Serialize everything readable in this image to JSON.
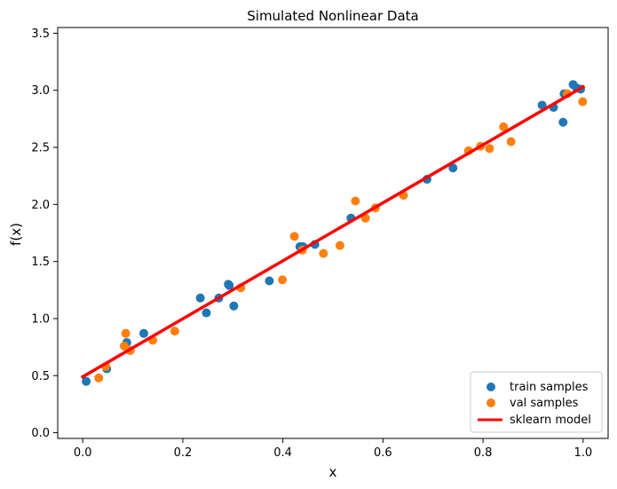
{
  "chart_data": {
    "type": "scatter",
    "title": "Simulated Nonlinear Data",
    "xlabel": "x",
    "ylabel": "f(x)",
    "xlim": [
      -0.05,
      1.05
    ],
    "ylim": [
      -0.05,
      3.55
    ],
    "xticks": [
      "0.0",
      "0.2",
      "0.4",
      "0.6",
      "0.8",
      "1.0"
    ],
    "xtick_values": [
      0.0,
      0.2,
      0.4,
      0.6,
      0.8,
      1.0
    ],
    "yticks": [
      "0.0",
      "0.5",
      "1.0",
      "1.5",
      "2.0",
      "2.5",
      "3.0",
      "3.5"
    ],
    "ytick_values": [
      0.0,
      0.5,
      1.0,
      1.5,
      2.0,
      2.5,
      3.0,
      3.5
    ],
    "grid": false,
    "legend_position": "lower-right",
    "series": [
      {
        "name": "train samples",
        "kind": "scatter",
        "color": "#1f77b4",
        "x": [
          0.007,
          0.048,
          0.088,
          0.122,
          0.235,
          0.247,
          0.272,
          0.291,
          0.293,
          0.302,
          0.373,
          0.434,
          0.44,
          0.464,
          0.536,
          0.688,
          0.74,
          0.918,
          0.941,
          0.96,
          0.962,
          0.98,
          0.987,
          0.995
        ],
        "y": [
          0.45,
          0.56,
          0.79,
          0.87,
          1.18,
          1.05,
          1.18,
          1.3,
          1.29,
          1.11,
          1.33,
          1.63,
          1.63,
          1.65,
          1.88,
          2.22,
          2.32,
          2.87,
          2.85,
          2.72,
          2.97,
          3.05,
          3.02,
          3.01
        ]
      },
      {
        "name": "val samples",
        "kind": "scatter",
        "color": "#ff7f0e",
        "x": [
          0.032,
          0.046,
          0.083,
          0.086,
          0.095,
          0.14,
          0.184,
          0.316,
          0.399,
          0.423,
          0.439,
          0.481,
          0.514,
          0.545,
          0.565,
          0.585,
          0.641,
          0.771,
          0.795,
          0.813,
          0.841,
          0.856,
          0.968,
          0.999
        ],
        "y": [
          0.48,
          0.58,
          0.76,
          0.87,
          0.72,
          0.81,
          0.89,
          1.27,
          1.34,
          1.72,
          1.6,
          1.57,
          1.64,
          2.03,
          1.88,
          1.97,
          2.08,
          2.47,
          2.51,
          2.49,
          2.68,
          2.55,
          2.97,
          2.9
        ]
      },
      {
        "name": "sklearn model",
        "kind": "line",
        "color": "#ff0000",
        "x": [
          0.0,
          1.0
        ],
        "y": [
          0.49,
          3.03
        ]
      }
    ]
  }
}
